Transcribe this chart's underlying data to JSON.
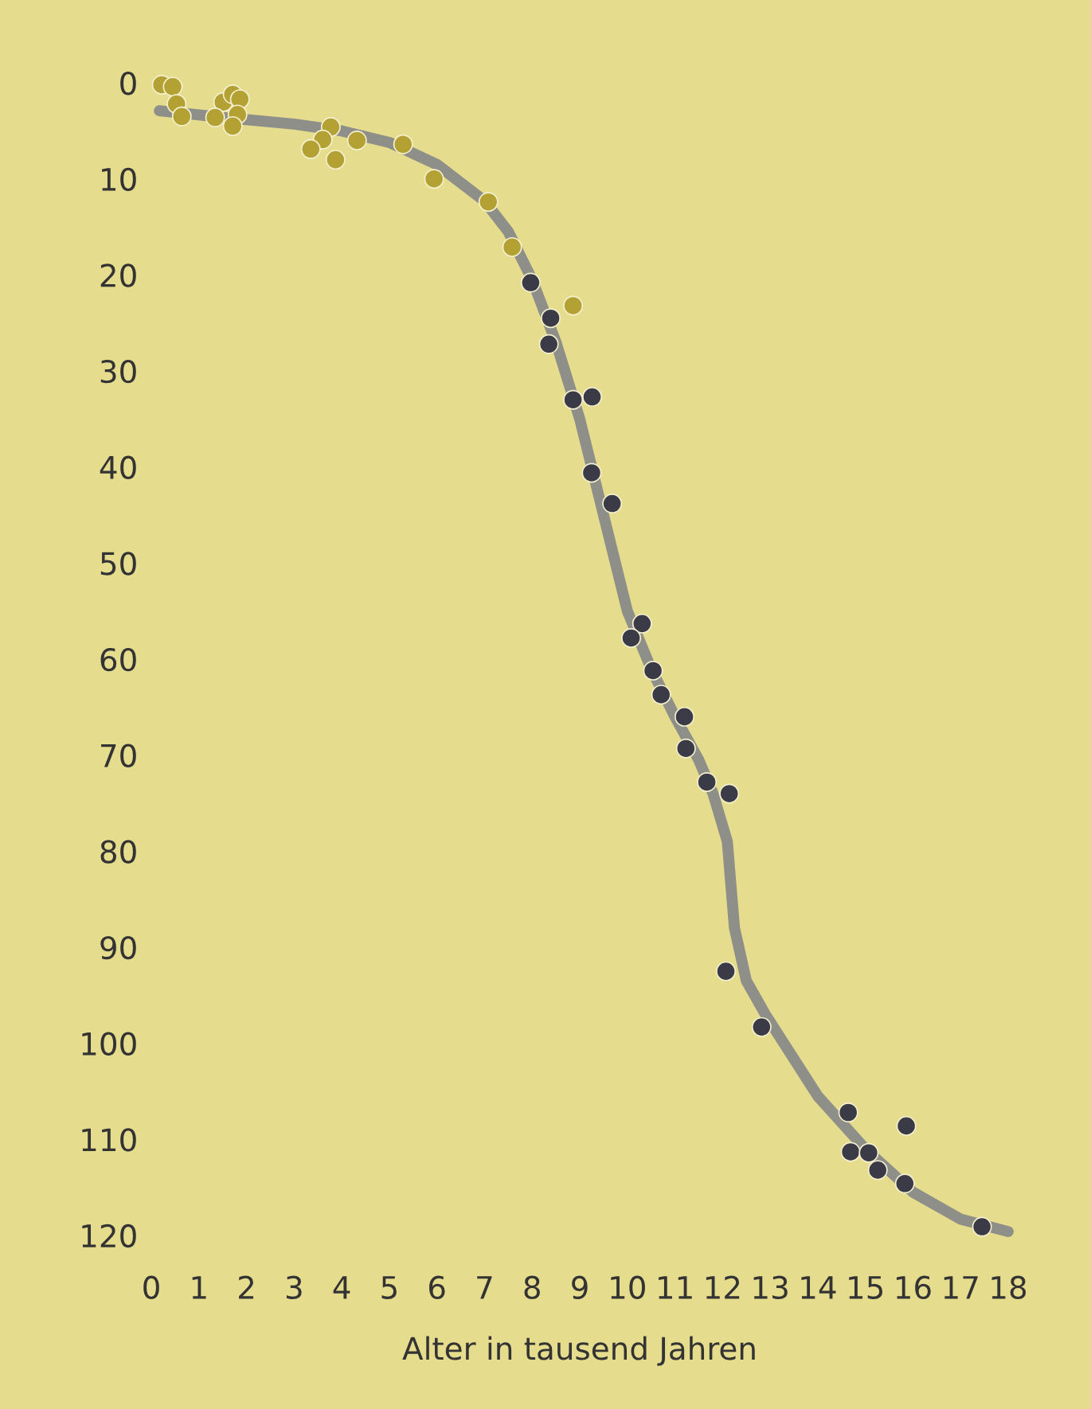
{
  "chart_data": {
    "type": "scatter",
    "xlabel": "Alter in tausend Jahren",
    "xlim": [
      0,
      18
    ],
    "xticks": [
      0,
      1,
      2,
      3,
      4,
      5,
      6,
      7,
      8,
      9,
      10,
      11,
      12,
      13,
      14,
      15,
      16,
      17,
      18
    ],
    "ylim": [
      120,
      0
    ],
    "yticks": [
      0,
      10,
      20,
      30,
      40,
      50,
      60,
      70,
      80,
      90,
      100,
      110,
      120
    ],
    "grid": false,
    "marker": "circle",
    "series": [
      {
        "type": "line",
        "marker": "none",
        "color": "#8f8f8a",
        "x": [
          0.17,
          1.5,
          3,
          4,
          5,
          6,
          7,
          7.5,
          8,
          8.5,
          9,
          9.5,
          10,
          10.5,
          11,
          11.5,
          11.8,
          12.1,
          12.25,
          12.5,
          12.9,
          14,
          15,
          16,
          17,
          18
        ],
        "values": [
          2.9,
          3.6,
          4.3,
          5.0,
          6.2,
          8.5,
          12.3,
          15.5,
          20.5,
          27,
          35,
          45,
          55,
          61,
          66,
          70.5,
          74,
          79,
          88,
          93.5,
          97,
          105.5,
          111,
          115.5,
          118.3,
          119.6
        ]
      },
      {
        "color": "#b3a233",
        "x": [
          0.22,
          0.45,
          0.53,
          0.64,
          1.51,
          1.71,
          1.86,
          1.34,
          1.81,
          1.71,
          3.77,
          3.6,
          3.35,
          3.87,
          4.32,
          5.29,
          5.94,
          7.08,
          7.58,
          8.86
        ],
        "values": [
          0.2,
          0.4,
          2.2,
          3.5,
          2.0,
          1.2,
          1.7,
          3.6,
          3.3,
          4.5,
          4.6,
          5.9,
          6.9,
          8.0,
          6.0,
          6.4,
          10.0,
          12.4,
          17.1,
          23.2
        ]
      },
      {
        "color": "#3b3b47",
        "x": [
          7.97,
          8.39,
          8.35,
          8.86,
          9.26,
          9.25,
          9.68,
          10.31,
          10.08,
          10.54,
          10.71,
          11.2,
          11.23,
          11.67,
          12.14,
          12.07,
          12.82,
          14.64,
          15.86,
          14.69,
          15.07,
          15.26,
          15.83,
          17.45
        ],
        "values": [
          20.8,
          24.5,
          27.2,
          33.0,
          32.7,
          40.6,
          43.8,
          56.3,
          57.8,
          61.2,
          63.7,
          66.0,
          69.3,
          72.8,
          74.0,
          92.5,
          98.3,
          107.2,
          108.6,
          111.3,
          111.4,
          113.2,
          114.6,
          119.1
        ]
      }
    ]
  }
}
